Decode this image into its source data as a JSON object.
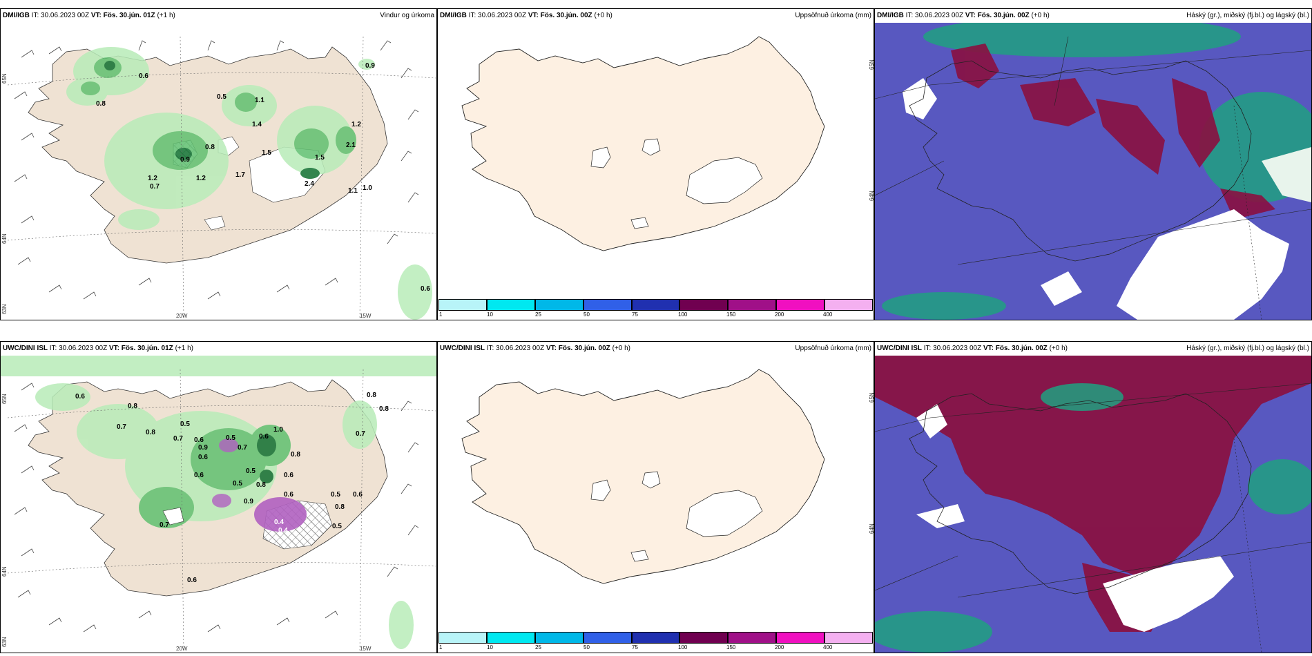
{
  "panels": [
    {
      "model": "DMI/IGB",
      "it_label": "IT:",
      "it_value": "30.06.2023 00Z",
      "vt_label": "VT:",
      "vt_value": "Fös. 30.jún. 01Z",
      "lead": "(+1 h)",
      "product": "Vindur og úrkoma",
      "lat_labels": [
        "65N",
        "64N",
        "63N"
      ],
      "lon_labels": [
        "20W",
        "15W"
      ],
      "values": [
        "0.6",
        "0.8",
        "0.5",
        "1.1",
        "1.4",
        "0.8",
        "0.9",
        "1.5",
        "1.2",
        "1.5",
        "2.1",
        "1.2",
        "1.2",
        "1.7",
        "0.7",
        "2.4",
        "1.1",
        "1.0",
        "0.9",
        "0.6"
      ]
    },
    {
      "model": "DMI/IGB",
      "it_label": "IT:",
      "it_value": "30.06.2023 00Z",
      "vt_label": "VT:",
      "vt_value": "Fös. 30.jún. 00Z",
      "lead": "(+0 h)",
      "product": "Uppsöfnuð úrkoma (mm)",
      "lat_labels": [
        "65N",
        "64N"
      ],
      "legend_ticks": [
        "1",
        "10",
        "25",
        "50",
        "75",
        "100",
        "150",
        "200",
        "400"
      ]
    },
    {
      "model": "DMI/IGB",
      "it_label": "IT:",
      "it_value": "30.06.2023 00Z",
      "vt_label": "VT:",
      "vt_value": "Fös. 30.jún. 00Z",
      "lead": "(+0 h)",
      "product": "Háský (gr.), miðský (fj.bl.) og lágský (bl.)"
    },
    {
      "model": "UWC/DINI ISL",
      "it_label": "IT:",
      "it_value": "30.06.2023 00Z",
      "vt_label": "VT:",
      "vt_value": "Fös. 30.jún. 01Z",
      "lead": "(+1 h)",
      "product": "",
      "lat_labels": [
        "65N",
        "64N",
        "63N"
      ],
      "lon_labels": [
        "20W",
        "15W"
      ],
      "values": [
        "0.6",
        "0.8",
        "0.7",
        "0.8",
        "0.5",
        "0.7",
        "0.6",
        "0.9",
        "0.6",
        "0.5",
        "0.6",
        "1.0",
        "0.8",
        "0.7",
        "0.5",
        "0.5",
        "0.8",
        "0.6",
        "0.6",
        "0.8",
        "0.7",
        "0.9",
        "0.6",
        "0.4",
        "0.4",
        "0.8",
        "0.5",
        "0.6",
        "0.5",
        "0.6",
        "0.8",
        "0.7"
      ]
    },
    {
      "model": "UWC/DINI ISL",
      "it_label": "IT:",
      "it_value": "30.06.2023 00Z",
      "vt_label": "VT:",
      "vt_value": "Fös. 30.jún. 00Z",
      "lead": "(+0 h)",
      "product": "Uppsöfnuð úrkoma (mm)",
      "lat_labels": [
        "65N",
        "64N"
      ],
      "legend_ticks": [
        "1",
        "10",
        "25",
        "50",
        "75",
        "100",
        "150",
        "200",
        "400"
      ]
    },
    {
      "model": "UWC/DINI ISL",
      "it_label": "IT:",
      "it_value": "30.06.2023 00Z",
      "vt_label": "VT:",
      "vt_value": "Fös. 30.jún. 00Z",
      "lead": "(+0 h)",
      "product": "Háský (gr.), miðský (fj.bl.) og lágský (bl.)"
    }
  ],
  "precip_legend_colors": [
    "#b8f4f8",
    "#00e8f0",
    "#00b8e8",
    "#3060e8",
    "#2030b0",
    "#700050",
    "#a01088",
    "#f010c0",
    "#f4b0f0"
  ],
  "colors": {
    "land": "#efe2d3",
    "land_plain": "#fdf0e2",
    "precip_light": "#b8ecb8",
    "precip_mid": "#60c070",
    "precip_heavy": "#107030",
    "precip_purple": "#b060c0",
    "cloud_high": "#5858c0",
    "cloud_mid": "#8a1040",
    "cloud_low": "#20a080"
  }
}
